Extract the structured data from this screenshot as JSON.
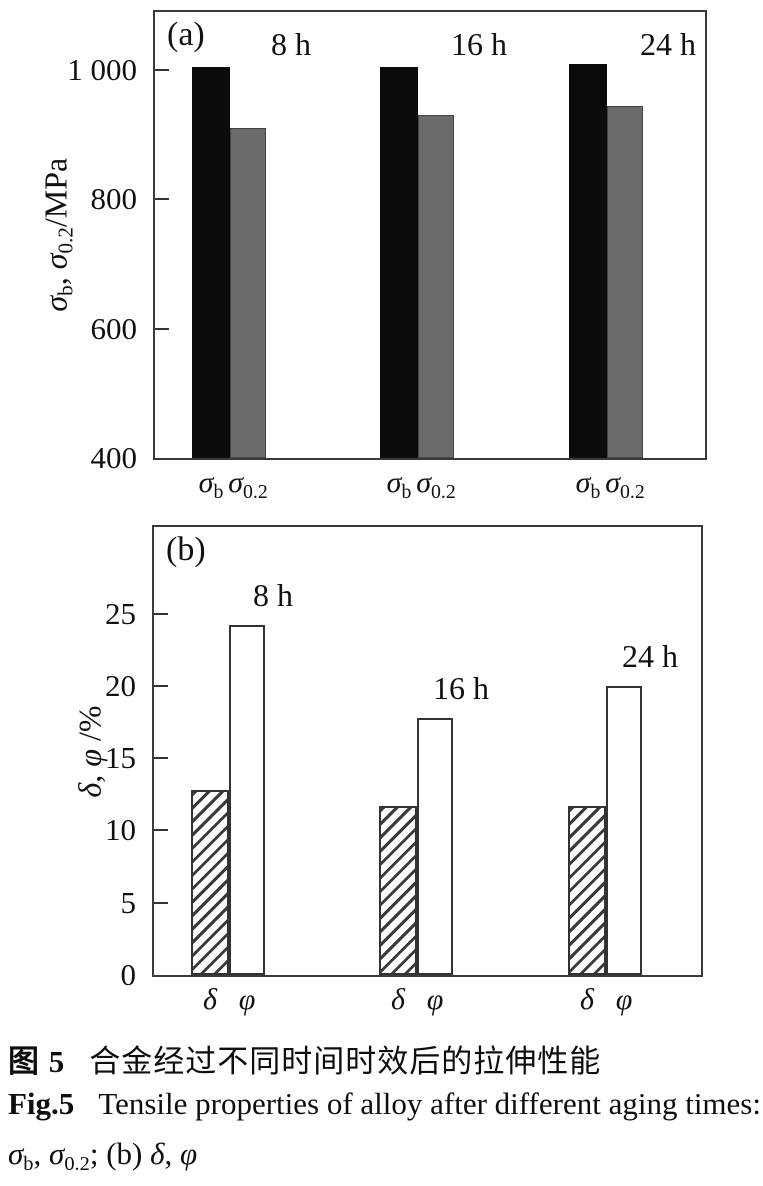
{
  "figure": {
    "background": "#ffffff",
    "plot_border_color": "#3a3a3a",
    "bar_colors": {
      "black": "#0c0c0c",
      "gray": "#6b6b6b",
      "white": "#ffffff",
      "hatch_line": "#3a3a3a"
    }
  },
  "chart_data": [
    {
      "panel_label": "(a)",
      "type": "bar",
      "ylabel": "σb, σ0.2/MPa",
      "ylabel_segments": [
        {
          "t": "σ",
          "s": "i"
        },
        {
          "t": "b",
          "s": "sub"
        },
        {
          "t": ", ",
          "s": ""
        },
        {
          "t": "σ",
          "s": "i"
        },
        {
          "t": "0.2",
          "s": "sub"
        },
        {
          "t": "/MPa",
          "s": ""
        }
      ],
      "ylim": [
        400,
        1090
      ],
      "yticks": [
        400,
        600,
        800,
        1000
      ],
      "ytick_labels": [
        "400",
        "600",
        "800",
        "1 000"
      ],
      "grid": false,
      "legend": "none",
      "categories": [
        "8 h",
        "16 h",
        "24 h"
      ],
      "series": [
        {
          "name": "σb",
          "style": "black",
          "label_segments": [
            {
              "t": "σ",
              "s": "i"
            },
            {
              "t": "b",
              "s": "sub"
            }
          ],
          "values": [
            1005,
            1005,
            1010
          ]
        },
        {
          "name": "σ0.2",
          "style": "gray",
          "label_segments": [
            {
              "t": "σ",
              "s": "i"
            },
            {
              "t": "0.2",
              "s": "sub"
            }
          ],
          "values": [
            910,
            930,
            945
          ]
        }
      ]
    },
    {
      "panel_label": "(b)",
      "type": "bar",
      "ylabel": "δ, φ /%",
      "ylabel_segments": [
        {
          "t": "δ",
          "s": "i"
        },
        {
          "t": ", ",
          "s": ""
        },
        {
          "t": "φ",
          "s": "i"
        },
        {
          "t": " /%",
          "s": ""
        }
      ],
      "ylim": [
        0,
        31
      ],
      "yticks": [
        0,
        5,
        10,
        15,
        20,
        25
      ],
      "ytick_labels": [
        "0",
        "5",
        "10",
        "15",
        "20",
        "25"
      ],
      "grid": false,
      "legend": "none",
      "categories": [
        "8 h",
        "16 h",
        "24 h"
      ],
      "series": [
        {
          "name": "δ",
          "style": "hatched",
          "label_segments": [
            {
              "t": "δ",
              "s": "i"
            }
          ],
          "values": [
            12.8,
            11.7,
            11.7
          ]
        },
        {
          "name": "φ",
          "style": "white",
          "label_segments": [
            {
              "t": "φ",
              "s": "i"
            }
          ],
          "values": [
            24.2,
            17.8,
            20.0
          ]
        }
      ]
    }
  ],
  "caption": {
    "line1": {
      "label": "图 5",
      "text": "合金经过不同时间时效后的拉伸性能"
    },
    "line2": {
      "label": "Fig.5",
      "text": "Tensile properties of alloy after different aging times: (a)"
    },
    "line3_segments": [
      {
        "t": "σ",
        "s": "i"
      },
      {
        "t": "b",
        "s": "sub"
      },
      {
        "t": ", ",
        "s": ""
      },
      {
        "t": "σ",
        "s": "i"
      },
      {
        "t": "0.2",
        "s": "sub"
      },
      {
        "t": "; (b) ",
        "s": ""
      },
      {
        "t": "δ",
        "s": "i"
      },
      {
        "t": ", ",
        "s": ""
      },
      {
        "t": "φ",
        "s": "i"
      }
    ]
  }
}
